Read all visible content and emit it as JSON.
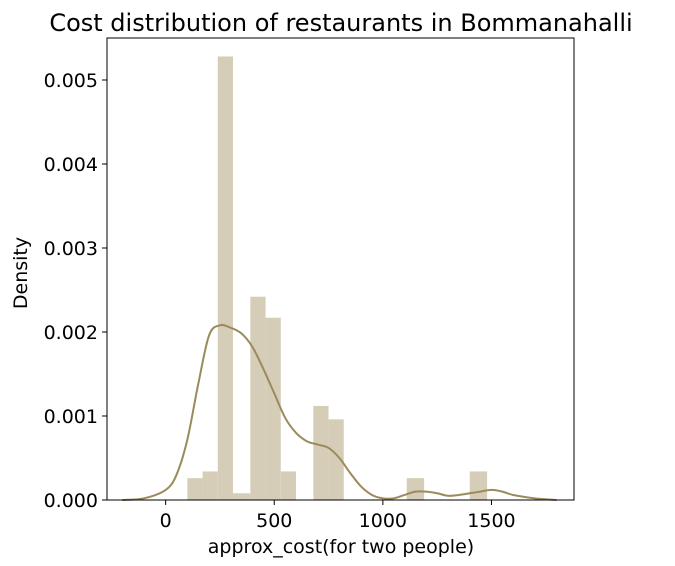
{
  "chart_data": {
    "type": "histogram",
    "title": "Cost distribution of restaurants in Bommanahalli",
    "xlabel": "approx_cost(for two people)",
    "ylabel": "Density",
    "xlim": [
      -270,
      1880
    ],
    "ylim": [
      0,
      0.0055
    ],
    "x_ticks": [
      {
        "value": 0,
        "label": "0"
      },
      {
        "value": 500,
        "label": "500"
      },
      {
        "value": 1000,
        "label": "1000"
      },
      {
        "value": 1500,
        "label": "1500"
      }
    ],
    "y_ticks": [
      {
        "value": 0,
        "label": "0.000"
      },
      {
        "value": 0.001,
        "label": "0.001"
      },
      {
        "value": 0.002,
        "label": "0.002"
      },
      {
        "value": 0.003,
        "label": "0.003"
      },
      {
        "value": 0.004,
        "label": "0.004"
      },
      {
        "value": 0.005,
        "label": "0.005"
      }
    ],
    "bar_color": "#d5cdb7",
    "kde_color": "#9b8a5c",
    "bins": [
      {
        "x0": 100,
        "x1": 170,
        "density": 0.00026
      },
      {
        "x0": 170,
        "x1": 240,
        "density": 0.00034
      },
      {
        "x0": 240,
        "x1": 310,
        "density": 0.00528
      },
      {
        "x0": 310,
        "x1": 390,
        "density": 8e-05
      },
      {
        "x0": 390,
        "x1": 460,
        "density": 0.00242
      },
      {
        "x0": 460,
        "x1": 530,
        "density": 0.00217
      },
      {
        "x0": 530,
        "x1": 600,
        "density": 0.00034
      },
      {
        "x0": 600,
        "x1": 680,
        "density": 0.0
      },
      {
        "x0": 680,
        "x1": 750,
        "density": 0.00112
      },
      {
        "x0": 750,
        "x1": 820,
        "density": 0.00096
      },
      {
        "x0": 820,
        "x1": 900,
        "density": 0.0
      },
      {
        "x0": 900,
        "x1": 970,
        "density": 0.0
      },
      {
        "x0": 970,
        "x1": 1040,
        "density": 0.0
      },
      {
        "x0": 1040,
        "x1": 1110,
        "density": 0.0
      },
      {
        "x0": 1110,
        "x1": 1190,
        "density": 0.00026
      },
      {
        "x0": 1190,
        "x1": 1260,
        "density": 0.0
      },
      {
        "x0": 1260,
        "x1": 1330,
        "density": 0.0
      },
      {
        "x0": 1330,
        "x1": 1400,
        "density": 0.0
      },
      {
        "x0": 1400,
        "x1": 1480,
        "density": 0.00034
      }
    ],
    "kde": {
      "x": [
        -200,
        -100,
        0,
        50,
        100,
        150,
        200,
        250,
        300,
        350,
        400,
        450,
        500,
        550,
        600,
        650,
        700,
        750,
        800,
        850,
        900,
        950,
        1000,
        1050,
        1100,
        1150,
        1200,
        1250,
        1300,
        1350,
        1400,
        1450,
        1500,
        1550,
        1600,
        1700,
        1800
      ],
      "y": [
        0.0,
        2e-05,
        0.00012,
        0.0003,
        0.00072,
        0.00138,
        0.00196,
        0.00208,
        0.00205,
        0.00198,
        0.00182,
        0.00156,
        0.00127,
        0.00098,
        0.0008,
        0.0007,
        0.00066,
        0.00062,
        0.0005,
        0.00032,
        0.00016,
        6e-05,
        2e-05,
        2e-05,
        6e-05,
        0.0001,
        0.0001,
        8e-05,
        5e-05,
        6e-05,
        8e-05,
        0.0001,
        0.00012,
        0.0001,
        6e-05,
        2e-05,
        0.0
      ]
    }
  }
}
